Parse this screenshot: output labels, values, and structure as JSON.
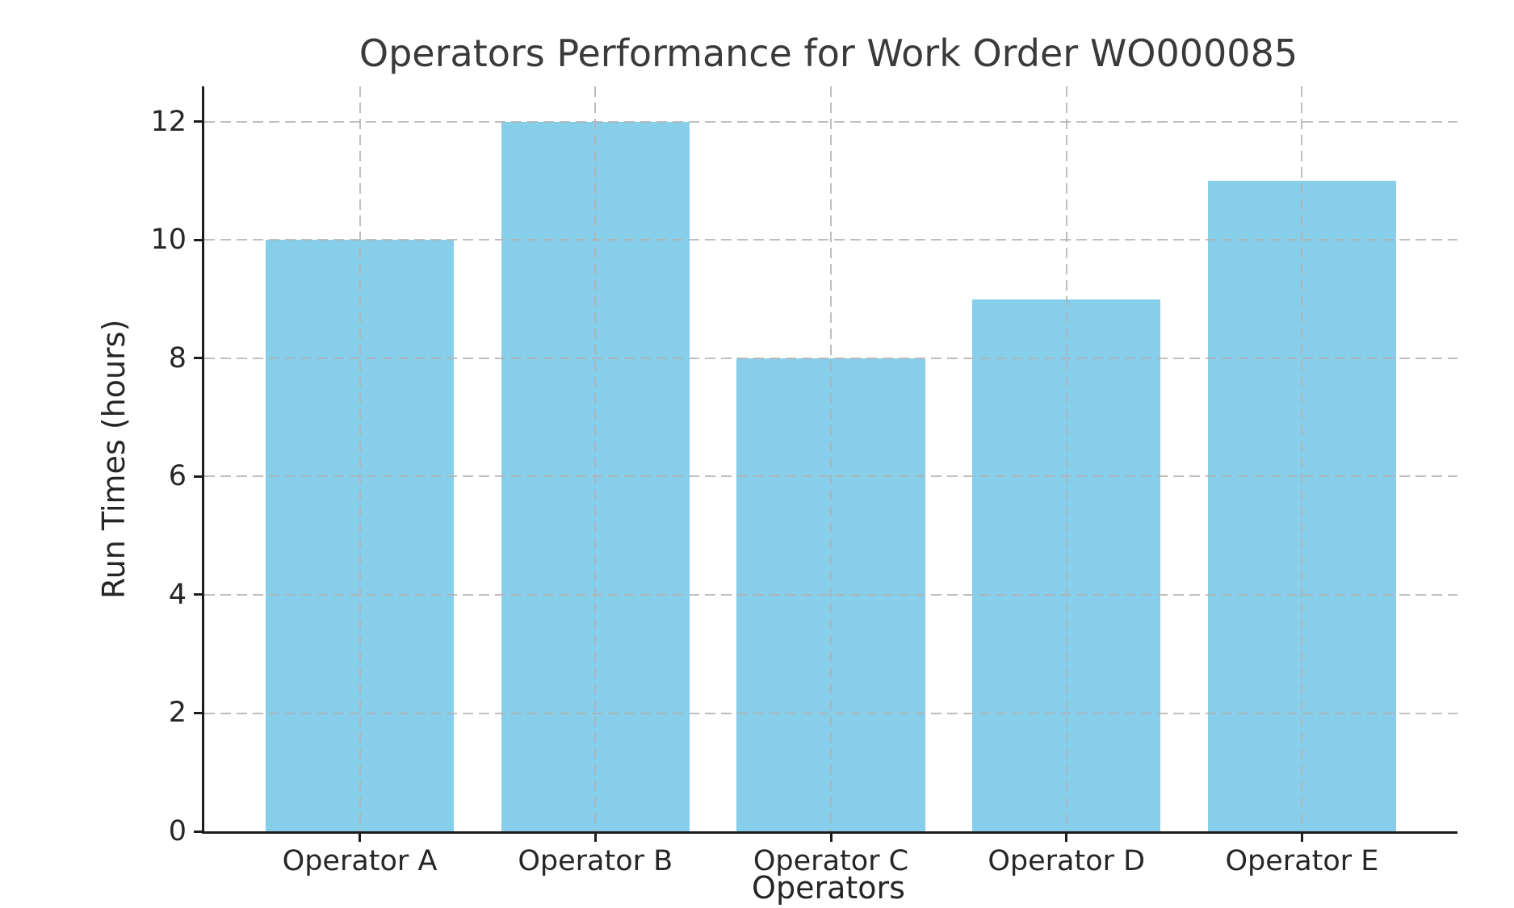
{
  "chart_data": {
    "type": "bar",
    "title": "Operators Performance for Work Order WO000085",
    "xlabel": "Operators",
    "ylabel": "Run Times (hours)",
    "categories": [
      "Operator A",
      "Operator B",
      "Operator C",
      "Operator D",
      "Operator E"
    ],
    "values": [
      10,
      12,
      8,
      9,
      11
    ],
    "yticks": [
      0,
      2,
      4,
      6,
      8,
      10,
      12
    ],
    "ylim": [
      0,
      12.6
    ],
    "bar_color": "#87CEEB",
    "grid": "dashed",
    "grid_color": "#c9c9c9",
    "grid_axes": "both",
    "spine_color": "#1c1c1c",
    "legend": "none",
    "background": "#ffffff"
  }
}
